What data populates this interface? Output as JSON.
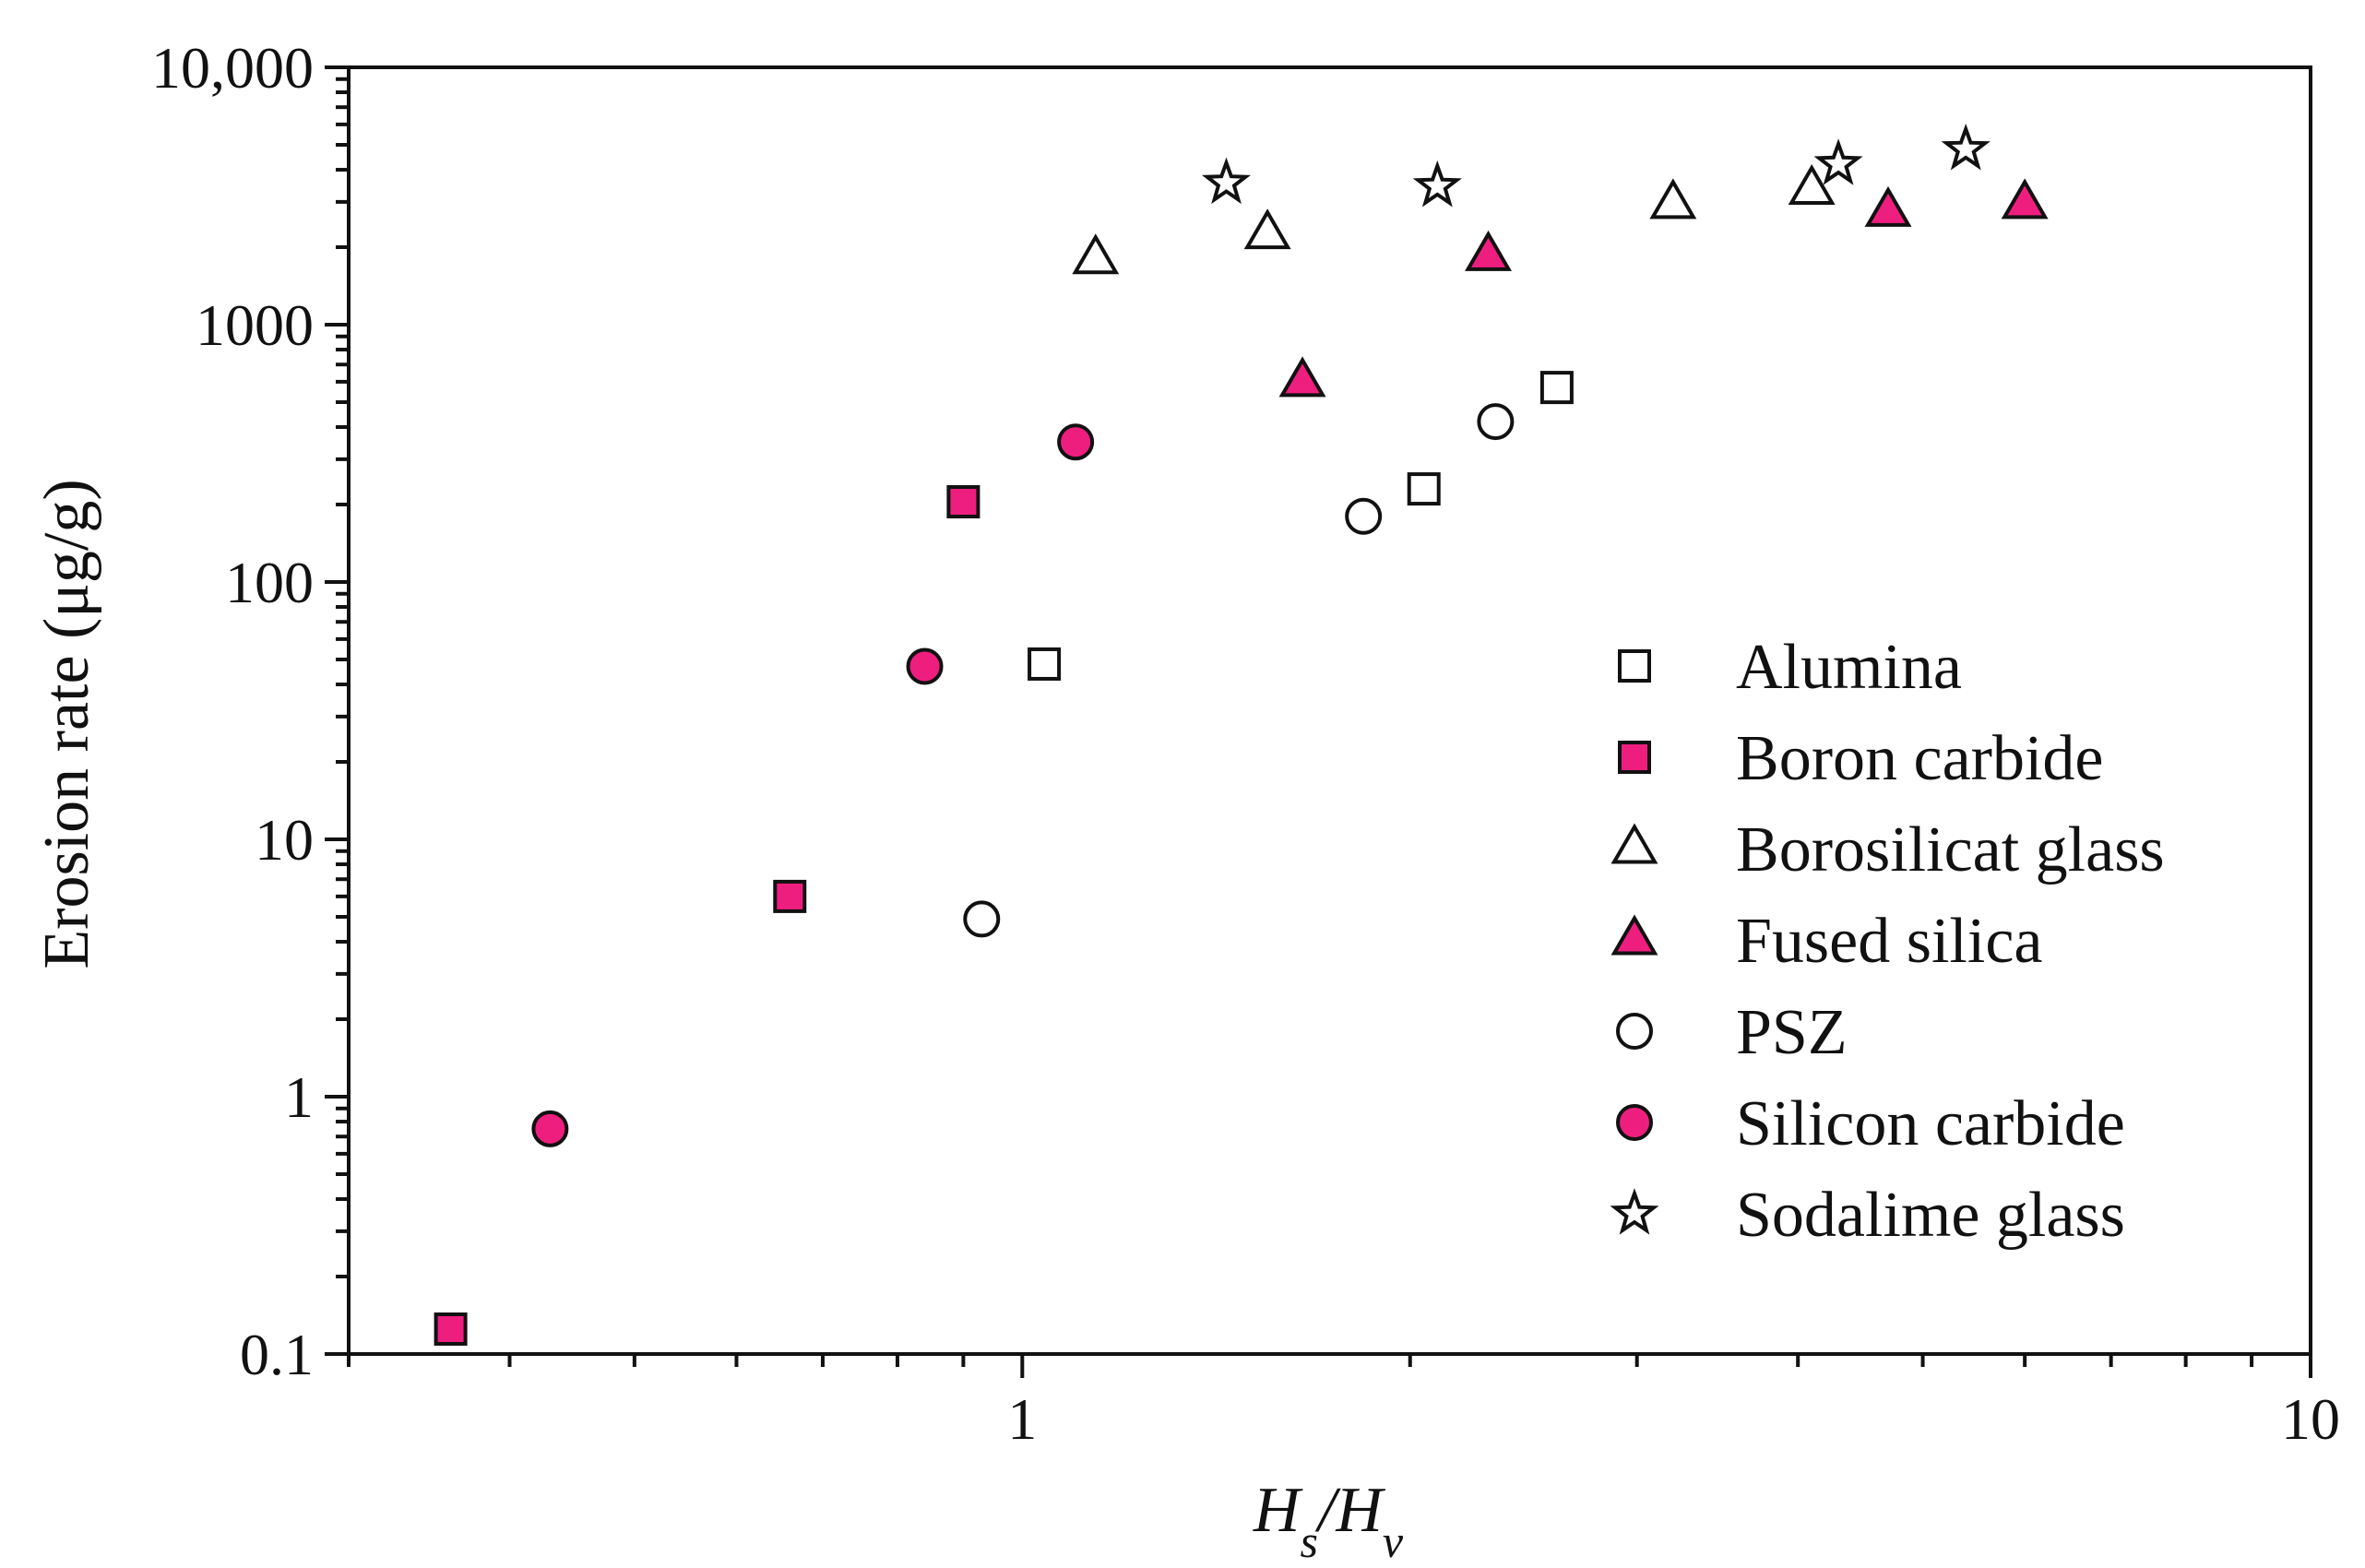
{
  "chart_data": {
    "type": "scatter",
    "xlabel": {
      "a": "H",
      "a_sub": "s",
      "sep": "/",
      "b": "H",
      "b_sub": "v"
    },
    "ylabel": "Erosion rate (μg/g)",
    "x_scale": "log",
    "y_scale": "log",
    "xlim": [
      0.3,
      10
    ],
    "ylim": [
      0.1,
      10000
    ],
    "x_tick_values": [
      1,
      10
    ],
    "x_tick_labels": [
      "1",
      "10"
    ],
    "y_tick_values": [
      0.1,
      1,
      10,
      100,
      1000,
      10000
    ],
    "y_tick_labels": [
      "0.1",
      "1",
      "10",
      "100",
      "1000",
      "10,000"
    ],
    "grid": false,
    "legend_position": "right",
    "series": [
      {
        "name": "Alumina",
        "marker": "square",
        "fill": "#ffffff",
        "points": [
          [
            1.04,
            48
          ],
          [
            2.05,
            230
          ],
          [
            2.6,
            570
          ]
        ]
      },
      {
        "name": "Boron carbide",
        "marker": "square",
        "fill": "#ee1e7f",
        "points": [
          [
            0.36,
            0.125
          ],
          [
            0.66,
            6
          ],
          [
            0.9,
            205
          ]
        ]
      },
      {
        "name": "Borosilicat glass",
        "marker": "triangle",
        "fill": "#ffffff",
        "points": [
          [
            1.14,
            1800
          ],
          [
            1.55,
            2250
          ],
          [
            3.2,
            2950
          ],
          [
            4.1,
            3350
          ]
        ]
      },
      {
        "name": "Fused silica",
        "marker": "triangle",
        "fill": "#ee1e7f",
        "points": [
          [
            1.65,
            600
          ],
          [
            2.3,
            1850
          ],
          [
            4.7,
            2750
          ],
          [
            6.0,
            2950
          ]
        ]
      },
      {
        "name": "PSZ",
        "marker": "circle",
        "fill": "#ffffff",
        "points": [
          [
            0.93,
            4.9
          ],
          [
            1.84,
            180
          ],
          [
            2.33,
            420
          ]
        ]
      },
      {
        "name": "Silicon carbide",
        "marker": "circle",
        "fill": "#ee1e7f",
        "points": [
          [
            0.43,
            0.75
          ],
          [
            0.84,
            47
          ],
          [
            1.1,
            350
          ]
        ]
      },
      {
        "name": "Sodalime glass",
        "marker": "star",
        "fill": "#ffffff",
        "points": [
          [
            1.44,
            3550
          ],
          [
            2.1,
            3450
          ],
          [
            4.3,
            4200
          ],
          [
            5.4,
            4800
          ]
        ]
      }
    ]
  }
}
